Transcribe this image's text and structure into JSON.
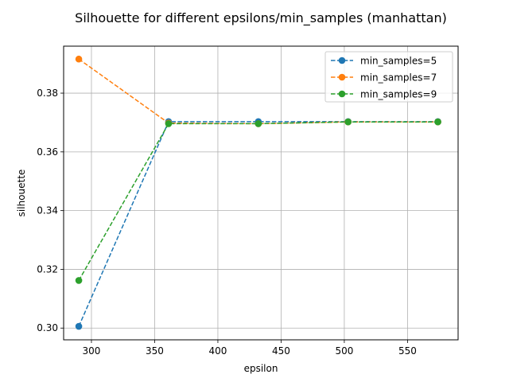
{
  "chart_data": {
    "type": "line",
    "title": "Silhouette for different epsilons/min_samples (manhattan)",
    "xlabel": "epsilon",
    "ylabel": "silhouette",
    "xlim": [
      278,
      590
    ],
    "ylim": [
      0.296,
      0.396
    ],
    "xticks": [
      300,
      350,
      400,
      450,
      500,
      550
    ],
    "yticks": [
      0.3,
      0.32,
      0.34,
      0.36,
      0.38
    ],
    "grid": true,
    "legend_position": "top-right",
    "x": [
      290,
      361,
      432,
      503,
      574
    ],
    "series": [
      {
        "name": "min_samples=5",
        "color": "#1f77b4",
        "values": [
          0.3006,
          0.3703,
          0.3703,
          0.3703,
          0.3703
        ]
      },
      {
        "name": "min_samples=7",
        "color": "#ff7f0e",
        "values": [
          0.3916,
          0.3698,
          0.3696,
          0.3702,
          0.3702
        ]
      },
      {
        "name": "min_samples=9",
        "color": "#2ca02c",
        "values": [
          0.3162,
          0.3696,
          0.3696,
          0.3702,
          0.3702
        ]
      }
    ]
  }
}
